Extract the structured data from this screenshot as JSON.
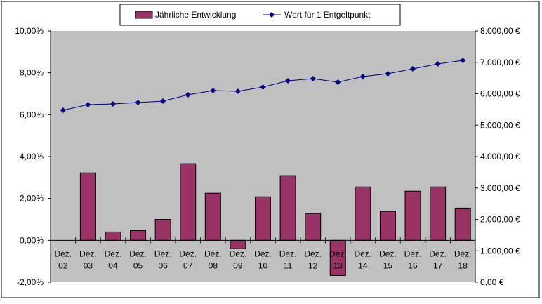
{
  "chart_data": {
    "type": "bar+line",
    "categories": [
      [
        "Dez.",
        "02"
      ],
      [
        "Dez.",
        "03"
      ],
      [
        "Dez.",
        "04"
      ],
      [
        "Dez.",
        "05"
      ],
      [
        "Dez.",
        "06"
      ],
      [
        "Dez.",
        "07"
      ],
      [
        "Dez.",
        "08"
      ],
      [
        "Dez.",
        "09"
      ],
      [
        "Dez.",
        "10"
      ],
      [
        "Dez.",
        "11"
      ],
      [
        "Dez.",
        "12"
      ],
      [
        "Dez.",
        "13"
      ],
      [
        "Dez.",
        "14"
      ],
      [
        "Dez.",
        "15"
      ],
      [
        "Dez.",
        "16"
      ],
      [
        "Dez.",
        "17"
      ],
      [
        "Dez.",
        "18"
      ]
    ],
    "series": [
      {
        "name": "Jährliche Entwicklung",
        "type": "bar",
        "axis": "left",
        "color": "#993366",
        "values": [
          0,
          3.22,
          0.4,
          0.47,
          1.0,
          3.66,
          2.25,
          -0.4,
          2.08,
          3.09,
          1.28,
          -1.68,
          2.55,
          1.38,
          2.35,
          2.55,
          1.54
        ]
      },
      {
        "name": "Wert für 1 Entgeltpunkt",
        "type": "line",
        "axis": "right",
        "color": "#000080",
        "values": [
          5475,
          5654,
          5676,
          5720,
          5765,
          5966,
          6101,
          6078,
          6212,
          6413,
          6480,
          6369,
          6547,
          6637,
          6793,
          6950,
          7061
        ]
      }
    ],
    "left_axis": {
      "ylim": [
        -2,
        10
      ],
      "ticks": [
        "-2,00%",
        "0,00%",
        "2,00%",
        "4,00%",
        "6,00%",
        "8,00%",
        "10,00%"
      ]
    },
    "right_axis": {
      "ylim": [
        0,
        8000
      ],
      "ticks": [
        "0,00 €",
        "1.000,00 €",
        "2.000,00 €",
        "3.000,00 €",
        "4.000,00 €",
        "5.000,00 €",
        "6.000,00 €",
        "7.000,00 €",
        "8.000,00 €"
      ]
    },
    "legend": "top",
    "plot_background": "#c0c0c0"
  }
}
